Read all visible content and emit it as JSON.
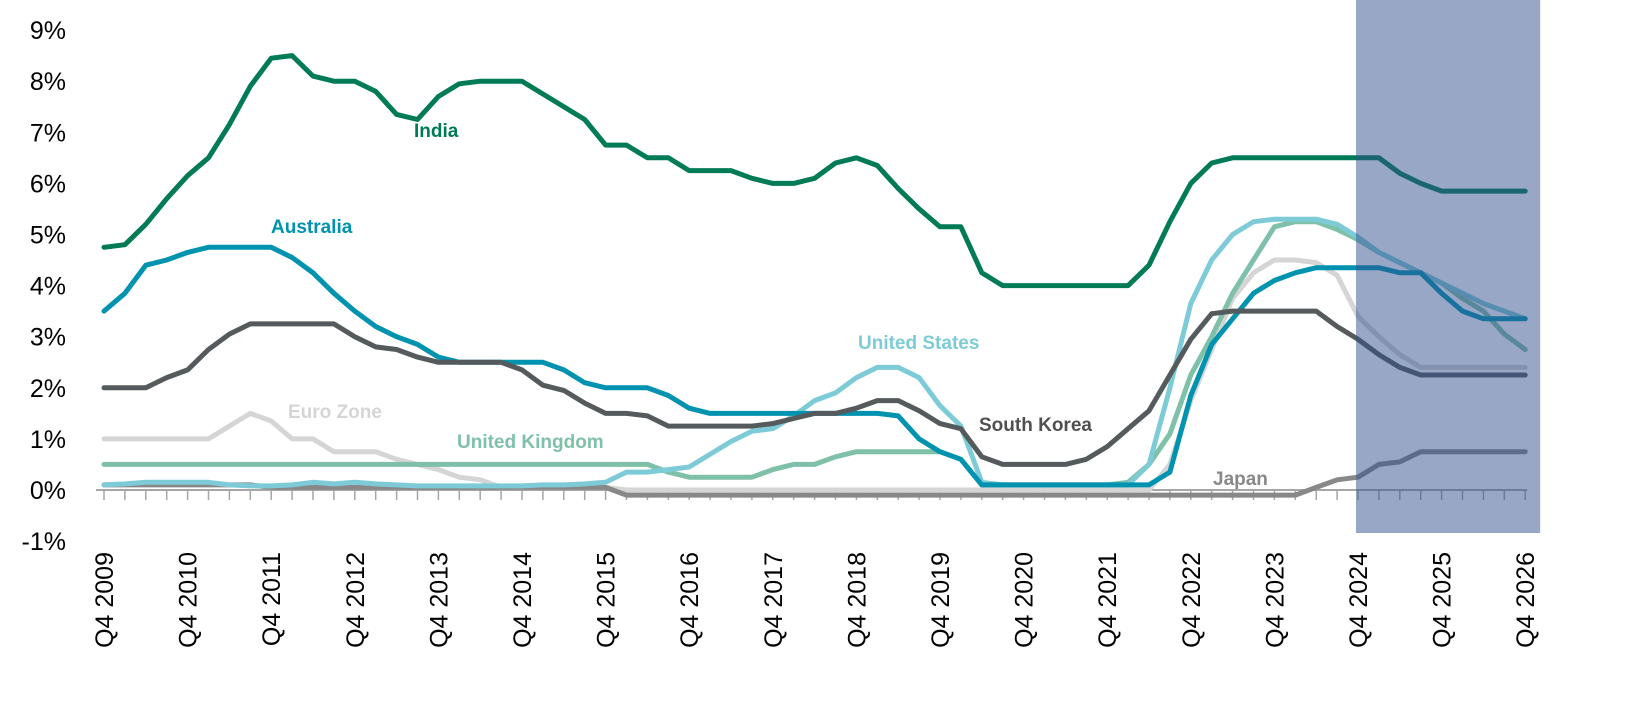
{
  "chart_data": {
    "type": "line",
    "title": "",
    "xlabel": "",
    "ylabel": "",
    "ylim": [
      -1,
      9
    ],
    "y_ticks": [
      "-1%",
      "0%",
      "1%",
      "2%",
      "3%",
      "4%",
      "5%",
      "6%",
      "7%",
      "8%",
      "9%"
    ],
    "x_ticks": [
      "Q4 2009",
      "Q4 2010",
      "Q4 2011",
      "Q4 2012",
      "Q4 2013",
      "Q4 2014",
      "Q4 2015",
      "Q4 2016",
      "Q4 2017",
      "Q4 2018",
      "Q4 2019",
      "Q4 2020",
      "Q4 2021",
      "Q4 2022",
      "Q4 2023",
      "Q4 2024",
      "Q4 2025",
      "Q4 2026"
    ],
    "x_start": "Q4 2009",
    "x_unit": "quarter",
    "forecast_shading_from": "Q4 2024",
    "forecast_shading_color": "#32508c",
    "grid": false,
    "series": [
      {
        "name": "India",
        "label": "India",
        "color": "#007b55",
        "values": [
          4.75,
          4.8,
          5.2,
          5.7,
          6.15,
          6.5,
          7.15,
          7.9,
          8.45,
          8.5,
          8.1,
          8.0,
          8.0,
          7.8,
          7.35,
          7.25,
          7.7,
          7.95,
          8.0,
          8.0,
          8.0,
          7.75,
          7.5,
          7.25,
          6.75,
          6.75,
          6.5,
          6.5,
          6.25,
          6.25,
          6.25,
          6.1,
          6.0,
          6.0,
          6.1,
          6.4,
          6.5,
          6.35,
          5.9,
          5.5,
          5.15,
          5.15,
          4.25,
          4.0,
          4.0,
          4.0,
          4.0,
          4.0,
          4.0,
          4.0,
          4.4,
          5.25,
          6.0,
          6.4,
          6.5,
          6.5,
          6.5,
          6.5,
          6.5,
          6.5,
          6.5,
          6.5,
          6.2,
          6.0,
          5.85,
          5.85,
          5.85,
          5.85,
          5.85
        ]
      },
      {
        "name": "Australia",
        "label": "Australia",
        "color": "#0093b0",
        "values": [
          3.5,
          3.85,
          4.4,
          4.5,
          4.65,
          4.75,
          4.75,
          4.75,
          4.75,
          4.55,
          4.25,
          3.85,
          3.5,
          3.2,
          3.0,
          2.85,
          2.6,
          2.5,
          2.5,
          2.5,
          2.5,
          2.5,
          2.35,
          2.1,
          2.0,
          2.0,
          2.0,
          1.85,
          1.6,
          1.5,
          1.5,
          1.5,
          1.5,
          1.5,
          1.5,
          1.5,
          1.5,
          1.5,
          1.45,
          1.0,
          0.75,
          0.6,
          0.1,
          0.1,
          0.1,
          0.1,
          0.1,
          0.1,
          0.1,
          0.1,
          0.1,
          0.35,
          1.85,
          2.85,
          3.35,
          3.85,
          4.1,
          4.25,
          4.35,
          4.35,
          4.35,
          4.35,
          4.25,
          4.25,
          3.85,
          3.5,
          3.35,
          3.35,
          3.35
        ]
      },
      {
        "name": "South Korea",
        "label": "South Korea",
        "color": "#555a5c",
        "values": [
          2.0,
          2.0,
          2.0,
          2.2,
          2.35,
          2.75,
          3.05,
          3.25,
          3.25,
          3.25,
          3.25,
          3.25,
          3.0,
          2.8,
          2.75,
          2.6,
          2.5,
          2.5,
          2.5,
          2.5,
          2.35,
          2.05,
          1.95,
          1.7,
          1.5,
          1.5,
          1.45,
          1.25,
          1.25,
          1.25,
          1.25,
          1.25,
          1.3,
          1.4,
          1.5,
          1.5,
          1.6,
          1.75,
          1.75,
          1.55,
          1.3,
          1.2,
          0.65,
          0.5,
          0.5,
          0.5,
          0.5,
          0.6,
          0.85,
          1.2,
          1.55,
          2.25,
          2.95,
          3.45,
          3.5,
          3.5,
          3.5,
          3.5,
          3.5,
          3.2,
          2.95,
          2.65,
          2.4,
          2.25,
          2.25,
          2.25,
          2.25,
          2.25,
          2.25
        ]
      },
      {
        "name": "United States",
        "label": "United States",
        "color": "#7ecbd8",
        "values": [
          0.1,
          0.12,
          0.15,
          0.15,
          0.15,
          0.15,
          0.1,
          0.08,
          0.08,
          0.1,
          0.15,
          0.12,
          0.15,
          0.12,
          0.1,
          0.08,
          0.08,
          0.08,
          0.08,
          0.08,
          0.08,
          0.1,
          0.1,
          0.12,
          0.15,
          0.35,
          0.35,
          0.4,
          0.45,
          0.7,
          0.95,
          1.15,
          1.2,
          1.45,
          1.75,
          1.9,
          2.2,
          2.4,
          2.4,
          2.2,
          1.65,
          1.25,
          0.15,
          0.1,
          0.1,
          0.1,
          0.1,
          0.1,
          0.1,
          0.1,
          0.5,
          2.0,
          3.65,
          4.5,
          5.0,
          5.25,
          5.3,
          5.3,
          5.3,
          5.2,
          4.95,
          4.65,
          4.45,
          4.25,
          4.05,
          3.85,
          3.65,
          3.5,
          3.35
        ]
      },
      {
        "name": "United Kingdom",
        "label": "United Kingdom",
        "color": "#7fc0a8",
        "values": [
          0.5,
          0.5,
          0.5,
          0.5,
          0.5,
          0.5,
          0.5,
          0.5,
          0.5,
          0.5,
          0.5,
          0.5,
          0.5,
          0.5,
          0.5,
          0.5,
          0.5,
          0.5,
          0.5,
          0.5,
          0.5,
          0.5,
          0.5,
          0.5,
          0.5,
          0.5,
          0.5,
          0.35,
          0.25,
          0.25,
          0.25,
          0.25,
          0.4,
          0.5,
          0.5,
          0.65,
          0.75,
          0.75,
          0.75,
          0.75,
          0.75,
          0.6,
          0.1,
          0.1,
          0.1,
          0.1,
          0.1,
          0.1,
          0.1,
          0.15,
          0.5,
          1.1,
          2.25,
          3.0,
          3.85,
          4.5,
          5.15,
          5.25,
          5.25,
          5.1,
          4.9,
          4.65,
          4.45,
          4.25,
          4.05,
          3.75,
          3.5,
          3.05,
          2.75
        ]
      },
      {
        "name": "Euro Zone",
        "label": "Euro Zone",
        "color": "#d5d5d5",
        "values": [
          1.0,
          1.0,
          1.0,
          1.0,
          1.0,
          1.0,
          1.25,
          1.5,
          1.35,
          1.0,
          1.0,
          0.75,
          0.75,
          0.75,
          0.6,
          0.5,
          0.4,
          0.25,
          0.2,
          0.05,
          0.05,
          0.05,
          0.05,
          0.05,
          0.05,
          0.0,
          0.0,
          0.0,
          0.0,
          0.0,
          0.0,
          0.0,
          0.0,
          0.0,
          0.0,
          0.0,
          0.0,
          0.0,
          0.0,
          0.0,
          0.0,
          0.0,
          0.0,
          0.0,
          0.0,
          0.0,
          0.0,
          0.0,
          0.0,
          0.0,
          0.0,
          0.5,
          1.75,
          2.75,
          3.75,
          4.25,
          4.5,
          4.5,
          4.45,
          4.2,
          3.4,
          3.0,
          2.65,
          2.4,
          2.4,
          2.4,
          2.4,
          2.4,
          2.4
        ]
      },
      {
        "name": "Japan",
        "label": "Japan",
        "color": "#888888",
        "values": [
          0.1,
          0.1,
          0.1,
          0.1,
          0.1,
          0.1,
          0.1,
          0.1,
          0.05,
          0.05,
          0.05,
          0.05,
          0.05,
          0.05,
          0.05,
          0.05,
          0.05,
          0.05,
          0.05,
          0.05,
          0.05,
          0.05,
          0.05,
          0.05,
          0.05,
          -0.1,
          -0.1,
          -0.1,
          -0.1,
          -0.1,
          -0.1,
          -0.1,
          -0.1,
          -0.1,
          -0.1,
          -0.1,
          -0.1,
          -0.1,
          -0.1,
          -0.1,
          -0.1,
          -0.1,
          -0.1,
          -0.1,
          -0.1,
          -0.1,
          -0.1,
          -0.1,
          -0.1,
          -0.1,
          -0.1,
          -0.1,
          -0.1,
          -0.1,
          -0.1,
          -0.1,
          -0.1,
          -0.1,
          0.05,
          0.2,
          0.25,
          0.5,
          0.55,
          0.75,
          0.75,
          0.75,
          0.75,
          0.75,
          0.75
        ]
      }
    ]
  }
}
